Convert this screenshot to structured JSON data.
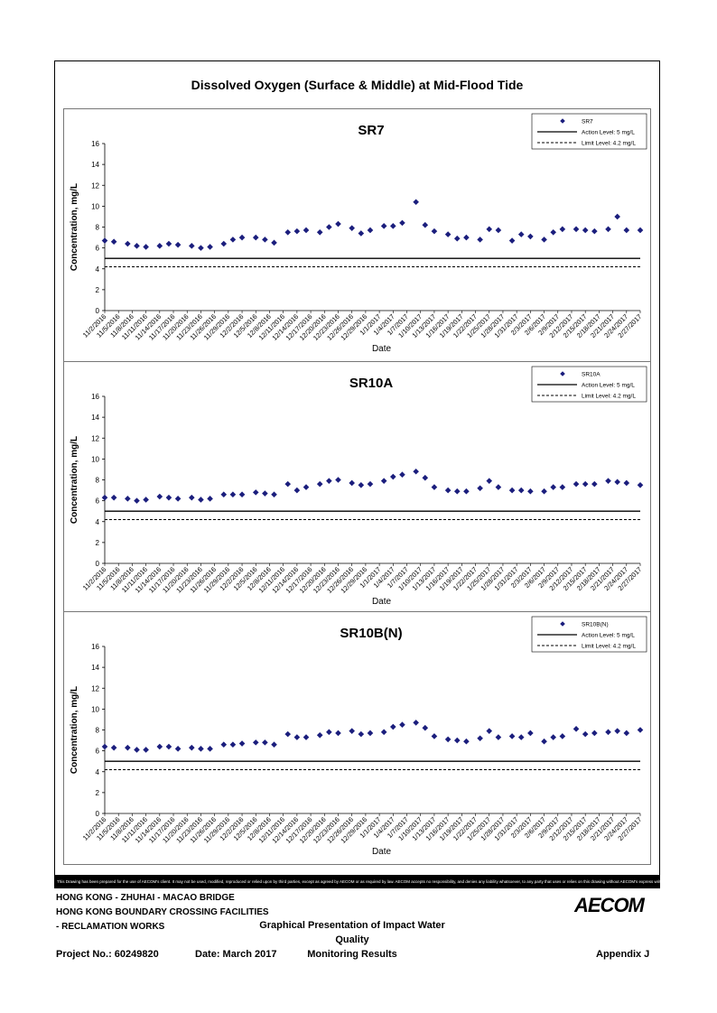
{
  "main_title": "Dissolved Oxygen (Surface & Middle) at Mid-Flood Tide",
  "chart_data": [
    {
      "type": "scatter",
      "title": "SR7",
      "xlabel": "Date",
      "ylabel": "Concentration, mg/L",
      "ylim": [
        0,
        16
      ],
      "yticks": [
        0,
        2,
        4,
        6,
        8,
        10,
        12,
        14,
        16
      ],
      "grid": false,
      "legend_position": "top-right",
      "marker_color": "#1b1e7d",
      "series": [
        {
          "name": "SR7",
          "x": [
            "2016-11-02",
            "2016-11-04",
            "2016-11-07",
            "2016-11-09",
            "2016-11-11",
            "2016-11-14",
            "2016-11-16",
            "2016-11-18",
            "2016-11-21",
            "2016-11-23",
            "2016-11-25",
            "2016-11-28",
            "2016-11-30",
            "2016-12-02",
            "2016-12-05",
            "2016-12-07",
            "2016-12-09",
            "2016-12-12",
            "2016-12-14",
            "2016-12-16",
            "2016-12-19",
            "2016-12-21",
            "2016-12-23",
            "2016-12-26",
            "2016-12-28",
            "2016-12-30",
            "2017-01-02",
            "2017-01-04",
            "2017-01-06",
            "2017-01-09",
            "2017-01-11",
            "2017-01-13",
            "2017-01-16",
            "2017-01-18",
            "2017-01-20",
            "2017-01-23",
            "2017-01-25",
            "2017-01-27",
            "2017-01-30",
            "2017-02-01",
            "2017-02-03",
            "2017-02-06",
            "2017-02-08",
            "2017-02-10",
            "2017-02-13",
            "2017-02-15",
            "2017-02-17",
            "2017-02-20",
            "2017-02-22",
            "2017-02-24",
            "2017-02-27"
          ],
          "values": [
            6.7,
            6.6,
            6.4,
            6.2,
            6.1,
            6.2,
            6.4,
            6.3,
            6.2,
            6.0,
            6.1,
            6.4,
            6.8,
            7.0,
            7.0,
            6.8,
            6.5,
            7.5,
            7.6,
            7.7,
            7.5,
            8.0,
            8.3,
            7.9,
            7.4,
            7.7,
            8.1,
            8.1,
            8.4,
            10.4,
            8.2,
            7.6,
            7.3,
            6.9,
            7.0,
            6.8,
            7.8,
            7.7,
            6.7,
            7.3,
            7.1,
            6.8,
            7.5,
            7.8,
            7.8,
            7.7,
            7.6,
            7.8,
            9.0,
            7.7,
            7.7
          ]
        },
        {
          "name": "Action Level: 5 mg/L",
          "value": 5
        },
        {
          "name": "Limit Level: 4.2 mg/L",
          "value": 4.2
        }
      ],
      "x_tick_labels": [
        "11/2/2016",
        "11/5/2016",
        "11/8/2016",
        "11/11/2016",
        "11/14/2016",
        "11/17/2016",
        "11/20/2016",
        "11/23/2016",
        "11/26/2016",
        "11/29/2016",
        "12/2/2016",
        "12/5/2016",
        "12/8/2016",
        "12/11/2016",
        "12/14/2016",
        "12/17/2016",
        "12/20/2016",
        "12/23/2016",
        "12/26/2016",
        "12/29/2016",
        "1/1/2017",
        "1/4/2017",
        "1/7/2017",
        "1/10/2017",
        "1/13/2017",
        "1/16/2017",
        "1/19/2017",
        "1/22/2017",
        "1/25/2017",
        "1/28/2017",
        "1/31/2017",
        "2/3/2017",
        "2/6/2017",
        "2/9/2017",
        "2/12/2017",
        "2/15/2017",
        "2/18/2017",
        "2/21/2017",
        "2/24/2017",
        "2/27/2017"
      ]
    },
    {
      "type": "scatter",
      "title": "SR10A",
      "xlabel": "Date",
      "ylabel": "Concentration, mg/L",
      "ylim": [
        0,
        16
      ],
      "yticks": [
        0,
        2,
        4,
        6,
        8,
        10,
        12,
        14,
        16
      ],
      "grid": false,
      "legend_position": "top-right",
      "marker_color": "#1b1e7d",
      "series": [
        {
          "name": "SR10A",
          "x": [
            "2016-11-02",
            "2016-11-04",
            "2016-11-07",
            "2016-11-09",
            "2016-11-11",
            "2016-11-14",
            "2016-11-16",
            "2016-11-18",
            "2016-11-21",
            "2016-11-23",
            "2016-11-25",
            "2016-11-28",
            "2016-11-30",
            "2016-12-02",
            "2016-12-05",
            "2016-12-07",
            "2016-12-09",
            "2016-12-12",
            "2016-12-14",
            "2016-12-16",
            "2016-12-19",
            "2016-12-21",
            "2016-12-23",
            "2016-12-26",
            "2016-12-28",
            "2016-12-30",
            "2017-01-02",
            "2017-01-04",
            "2017-01-06",
            "2017-01-09",
            "2017-01-11",
            "2017-01-13",
            "2017-01-16",
            "2017-01-18",
            "2017-01-20",
            "2017-01-23",
            "2017-01-25",
            "2017-01-27",
            "2017-01-30",
            "2017-02-01",
            "2017-02-03",
            "2017-02-06",
            "2017-02-08",
            "2017-02-10",
            "2017-02-13",
            "2017-02-15",
            "2017-02-17",
            "2017-02-20",
            "2017-02-22",
            "2017-02-24",
            "2017-02-27"
          ],
          "values": [
            6.3,
            6.3,
            6.2,
            6.0,
            6.1,
            6.4,
            6.3,
            6.2,
            6.3,
            6.1,
            6.2,
            6.6,
            6.6,
            6.6,
            6.8,
            6.7,
            6.6,
            7.6,
            7.0,
            7.3,
            7.6,
            7.9,
            8.0,
            7.7,
            7.5,
            7.6,
            7.9,
            8.3,
            8.5,
            8.8,
            8.2,
            7.3,
            7.0,
            6.9,
            6.9,
            7.2,
            7.9,
            7.3,
            7.0,
            7.0,
            6.9,
            6.9,
            7.3,
            7.3,
            7.6,
            7.6,
            7.6,
            7.9,
            7.8,
            7.7,
            7.5
          ]
        },
        {
          "name": "Action Level: 5 mg/L",
          "value": 5
        },
        {
          "name": "Limit Level: 4.2 mg/L",
          "value": 4.2
        }
      ],
      "x_tick_labels": [
        "11/2/2016",
        "11/5/2016",
        "11/8/2016",
        "11/11/2016",
        "11/14/2016",
        "11/17/2016",
        "11/20/2016",
        "11/23/2016",
        "11/26/2016",
        "11/29/2016",
        "12/2/2016",
        "12/5/2016",
        "12/8/2016",
        "12/11/2016",
        "12/14/2016",
        "12/17/2016",
        "12/20/2016",
        "12/23/2016",
        "12/26/2016",
        "12/29/2016",
        "1/1/2017",
        "1/4/2017",
        "1/7/2017",
        "1/10/2017",
        "1/13/2017",
        "1/16/2017",
        "1/19/2017",
        "1/22/2017",
        "1/25/2017",
        "1/28/2017",
        "1/31/2017",
        "2/3/2017",
        "2/6/2017",
        "2/9/2017",
        "2/12/2017",
        "2/15/2017",
        "2/18/2017",
        "2/21/2017",
        "2/24/2017",
        "2/27/2017"
      ]
    },
    {
      "type": "scatter",
      "title": "SR10B(N)",
      "xlabel": "Date",
      "ylabel": "Concentration, mg/L",
      "ylim": [
        0,
        16
      ],
      "yticks": [
        0,
        2,
        4,
        6,
        8,
        10,
        12,
        14,
        16
      ],
      "grid": false,
      "legend_position": "top-right",
      "marker_color": "#1b1e7d",
      "series": [
        {
          "name": "SR10B(N)",
          "x": [
            "2016-11-02",
            "2016-11-04",
            "2016-11-07",
            "2016-11-09",
            "2016-11-11",
            "2016-11-14",
            "2016-11-16",
            "2016-11-18",
            "2016-11-21",
            "2016-11-23",
            "2016-11-25",
            "2016-11-28",
            "2016-11-30",
            "2016-12-02",
            "2016-12-05",
            "2016-12-07",
            "2016-12-09",
            "2016-12-12",
            "2016-12-14",
            "2016-12-16",
            "2016-12-19",
            "2016-12-21",
            "2016-12-23",
            "2016-12-26",
            "2016-12-28",
            "2016-12-30",
            "2017-01-02",
            "2017-01-04",
            "2017-01-06",
            "2017-01-09",
            "2017-01-11",
            "2017-01-13",
            "2017-01-16",
            "2017-01-18",
            "2017-01-20",
            "2017-01-23",
            "2017-01-25",
            "2017-01-27",
            "2017-01-30",
            "2017-02-01",
            "2017-02-03",
            "2017-02-06",
            "2017-02-08",
            "2017-02-10",
            "2017-02-13",
            "2017-02-15",
            "2017-02-17",
            "2017-02-20",
            "2017-02-22",
            "2017-02-24",
            "2017-02-27"
          ],
          "values": [
            6.4,
            6.3,
            6.3,
            6.1,
            6.1,
            6.4,
            6.4,
            6.2,
            6.3,
            6.2,
            6.2,
            6.6,
            6.6,
            6.7,
            6.8,
            6.8,
            6.6,
            7.6,
            7.3,
            7.3,
            7.5,
            7.8,
            7.7,
            7.9,
            7.6,
            7.7,
            7.8,
            8.3,
            8.5,
            8.7,
            8.2,
            7.4,
            7.1,
            7.0,
            6.9,
            7.2,
            7.9,
            7.3,
            7.4,
            7.3,
            7.7,
            6.9,
            7.3,
            7.4,
            8.1,
            7.6,
            7.7,
            7.8,
            7.9,
            7.7,
            8.0
          ]
        },
        {
          "name": "Action Level: 5 mg/L",
          "value": 5
        },
        {
          "name": "Limit Level: 4.2 mg/L",
          "value": 4.2
        }
      ],
      "x_tick_labels": [
        "11/2/2016",
        "11/5/2016",
        "11/8/2016",
        "11/11/2016",
        "11/14/2016",
        "11/17/2016",
        "11/20/2016",
        "11/23/2016",
        "11/26/2016",
        "11/29/2016",
        "12/2/2016",
        "12/5/2016",
        "12/8/2016",
        "12/11/2016",
        "12/14/2016",
        "12/17/2016",
        "12/20/2016",
        "12/23/2016",
        "12/26/2016",
        "12/29/2016",
        "1/1/2017",
        "1/4/2017",
        "1/7/2017",
        "1/10/2017",
        "1/13/2017",
        "1/16/2017",
        "1/19/2017",
        "1/22/2017",
        "1/25/2017",
        "1/28/2017",
        "1/31/2017",
        "2/3/2017",
        "2/6/2017",
        "2/9/2017",
        "2/12/2017",
        "2/15/2017",
        "2/18/2017",
        "2/21/2017",
        "2/24/2017",
        "2/27/2017"
      ]
    }
  ],
  "disclaimer": "This Drawing has been prepared for the use of AECOM's client. It may not be used, modified, reproduced or relied upon by third parties, except as agreed by AECOM or as required by law. AECOM accepts no responsibility, and denies any liability whatsoever, to any party that uses or relies on this drawing without AECOM's express written consent.",
  "footer": {
    "line1": "HONG KONG - ZHUHAI - MACAO BRIDGE",
    "line2": "HONG KONG BOUNDARY CROSSING FACILITIES",
    "line3": "- RECLAMATION WORKS",
    "title_line1": "Graphical Presentation of Impact Water Quality",
    "title_line2": "Monitoring Results",
    "project": "Project No.: 60249820",
    "date": "Date: March 2017",
    "appendix": "Appendix J",
    "logo": "AECOM"
  }
}
